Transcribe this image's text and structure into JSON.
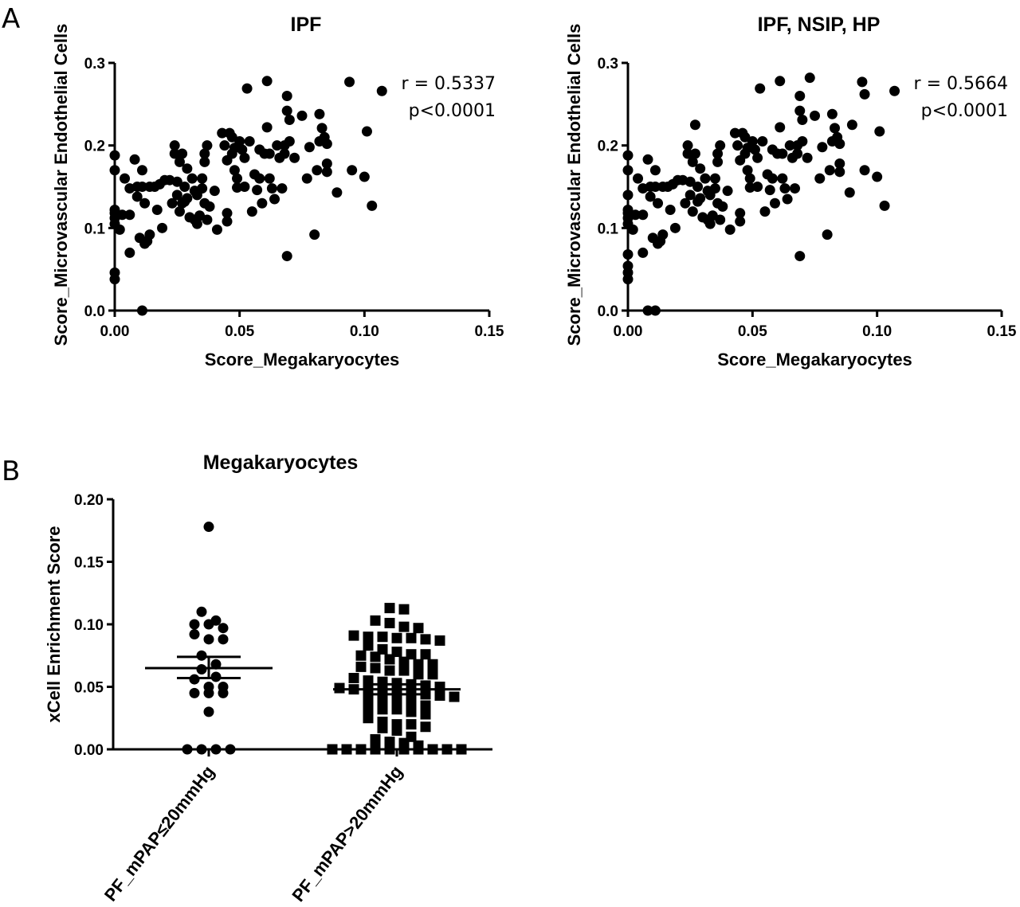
{
  "panels": {
    "a": "A",
    "b": "B"
  },
  "chart_data": [
    {
      "type": "scatter",
      "title": "IPF",
      "xlabel": "Score_Megakaryocytes",
      "ylabel": "Score_Microvascular Endothelial Cells",
      "xlim": [
        0,
        0.15
      ],
      "ylim": [
        0,
        0.3
      ],
      "xticks": [
        "0.00",
        "0.05",
        "0.10",
        "0.15"
      ],
      "yticks": [
        "0.0",
        "0.1",
        "0.2",
        "0.3"
      ],
      "annotations": [
        "r = 0.5337",
        "p<0.0001"
      ],
      "points": [
        [
          0,
          0.038
        ],
        [
          0,
          0.046
        ],
        [
          0,
          0.105
        ],
        [
          0,
          0.112
        ],
        [
          0,
          0.118
        ],
        [
          0,
          0.122
        ],
        [
          0,
          0.17
        ],
        [
          0,
          0.188
        ],
        [
          0.002,
          0.098
        ],
        [
          0.003,
          0.116
        ],
        [
          0.004,
          0.16
        ],
        [
          0.006,
          0.07
        ],
        [
          0.006,
          0.116
        ],
        [
          0.006,
          0.148
        ],
        [
          0.008,
          0.183
        ],
        [
          0.009,
          0.138
        ],
        [
          0.009,
          0.15
        ],
        [
          0.01,
          0.088
        ],
        [
          0.011,
          0.15
        ],
        [
          0.011,
          0.17
        ],
        [
          0.012,
          0.13
        ],
        [
          0.012,
          0.081
        ],
        [
          0.013,
          0.084
        ],
        [
          0.014,
          0.092
        ],
        [
          0.014,
          0.15
        ],
        [
          0.016,
          0.15
        ],
        [
          0.017,
          0.122
        ],
        [
          0.018,
          0.153
        ],
        [
          0.019,
          0.1
        ],
        [
          0.02,
          0.158
        ],
        [
          0.022,
          0.158
        ],
        [
          0.023,
          0.13
        ],
        [
          0.024,
          0.19
        ],
        [
          0.024,
          0.2
        ],
        [
          0.025,
          0.14
        ],
        [
          0.025,
          0.156
        ],
        [
          0.026,
          0.12
        ],
        [
          0.026,
          0.18
        ],
        [
          0.027,
          0.13
        ],
        [
          0.027,
          0.19
        ],
        [
          0.028,
          0.15
        ],
        [
          0.028,
          0.132
        ],
        [
          0.029,
          0.136
        ],
        [
          0.029,
          0.172
        ],
        [
          0.03,
          0.113
        ],
        [
          0.031,
          0.16
        ],
        [
          0.032,
          0.145
        ],
        [
          0.032,
          0.11
        ],
        [
          0.033,
          0.105
        ],
        [
          0.033,
          0.14
        ],
        [
          0.034,
          0.115
        ],
        [
          0.035,
          0.148
        ],
        [
          0.035,
          0.16
        ],
        [
          0.036,
          0.18
        ],
        [
          0.036,
          0.19
        ],
        [
          0.036,
          0.13
        ],
        [
          0.037,
          0.2
        ],
        [
          0.037,
          0.11
        ],
        [
          0.038,
          0.126
        ],
        [
          0.04,
          0.145
        ],
        [
          0.041,
          0.098
        ],
        [
          0.043,
          0.215
        ],
        [
          0.044,
          0.2
        ],
        [
          0.045,
          0.182
        ],
        [
          0.045,
          0.118
        ],
        [
          0.045,
          0.108
        ],
        [
          0.046,
          0.215
        ],
        [
          0.047,
          0.21
        ],
        [
          0.047,
          0.19
        ],
        [
          0.048,
          0.197
        ],
        [
          0.048,
          0.17
        ],
        [
          0.049,
          0.16
        ],
        [
          0.049,
          0.149
        ],
        [
          0.05,
          0.205
        ],
        [
          0.051,
          0.195
        ],
        [
          0.052,
          0.185
        ],
        [
          0.052,
          0.15
        ],
        [
          0.053,
          0.269
        ],
        [
          0.054,
          0.205
        ],
        [
          0.055,
          0.12
        ],
        [
          0.056,
          0.165
        ],
        [
          0.057,
          0.146
        ],
        [
          0.058,
          0.195
        ],
        [
          0.058,
          0.16
        ],
        [
          0.059,
          0.13
        ],
        [
          0.06,
          0.19
        ],
        [
          0.061,
          0.278
        ],
        [
          0.061,
          0.222
        ],
        [
          0.062,
          0.19
        ],
        [
          0.062,
          0.16
        ],
        [
          0.063,
          0.148
        ],
        [
          0.064,
          0.135
        ],
        [
          0.065,
          0.2
        ],
        [
          0.066,
          0.185
        ],
        [
          0.067,
          0.148
        ],
        [
          0.068,
          0.2
        ],
        [
          0.068,
          0.19
        ],
        [
          0.069,
          0.26
        ],
        [
          0.069,
          0.242
        ],
        [
          0.07,
          0.231
        ],
        [
          0.07,
          0.205
        ],
        [
          0.069,
          0.066
        ],
        [
          0.072,
          0.185
        ],
        [
          0.075,
          0.236
        ],
        [
          0.077,
          0.16
        ],
        [
          0.078,
          0.198
        ],
        [
          0.08,
          0.092
        ],
        [
          0.081,
          0.17
        ],
        [
          0.082,
          0.238
        ],
        [
          0.082,
          0.205
        ],
        [
          0.083,
          0.221
        ],
        [
          0.084,
          0.21
        ],
        [
          0.085,
          0.202
        ],
        [
          0.085,
          0.178
        ],
        [
          0.085,
          0.168
        ],
        [
          0.089,
          0.143
        ],
        [
          0.094,
          0.277
        ],
        [
          0.095,
          0.17
        ],
        [
          0.1,
          0.162
        ],
        [
          0.101,
          0.217
        ],
        [
          0.103,
          0.127
        ],
        [
          0.107,
          0.266
        ],
        [
          0.011,
          0.0
        ]
      ]
    },
    {
      "type": "scatter",
      "title": "IPF, NSIP, HP",
      "xlabel": "Score_Megakaryocytes",
      "ylabel": "Score_Microvascular Endothelial Cells",
      "xlim": [
        0,
        0.15
      ],
      "ylim": [
        0,
        0.3
      ],
      "xticks": [
        "0.00",
        "0.05",
        "0.10",
        "0.15"
      ],
      "yticks": [
        "0.0",
        "0.1",
        "0.2",
        "0.3"
      ],
      "annotations": [
        "r = 0.5664",
        "p<0.0001"
      ],
      "points": [
        [
          0,
          0.038
        ],
        [
          0,
          0.046
        ],
        [
          0,
          0.054
        ],
        [
          0,
          0.068
        ],
        [
          0,
          0.105
        ],
        [
          0,
          0.112
        ],
        [
          0,
          0.118
        ],
        [
          0,
          0.122
        ],
        [
          0,
          0.14
        ],
        [
          0,
          0.17
        ],
        [
          0,
          0.188
        ],
        [
          0.002,
          0.098
        ],
        [
          0.003,
          0.116
        ],
        [
          0.004,
          0.16
        ],
        [
          0.006,
          0.07
        ],
        [
          0.006,
          0.116
        ],
        [
          0.006,
          0.148
        ],
        [
          0.008,
          0.183
        ],
        [
          0.009,
          0.138
        ],
        [
          0.009,
          0.15
        ],
        [
          0.01,
          0.088
        ],
        [
          0.011,
          0.15
        ],
        [
          0.011,
          0.17
        ],
        [
          0.012,
          0.13
        ],
        [
          0.012,
          0.081
        ],
        [
          0.013,
          0.084
        ],
        [
          0.014,
          0.092
        ],
        [
          0.014,
          0.15
        ],
        [
          0.016,
          0.15
        ],
        [
          0.017,
          0.122
        ],
        [
          0.018,
          0.153
        ],
        [
          0.019,
          0.1
        ],
        [
          0.02,
          0.158
        ],
        [
          0.022,
          0.158
        ],
        [
          0.023,
          0.13
        ],
        [
          0.024,
          0.19
        ],
        [
          0.024,
          0.2
        ],
        [
          0.025,
          0.14
        ],
        [
          0.025,
          0.156
        ],
        [
          0.026,
          0.12
        ],
        [
          0.026,
          0.18
        ],
        [
          0.027,
          0.225
        ],
        [
          0.027,
          0.19
        ],
        [
          0.028,
          0.15
        ],
        [
          0.028,
          0.132
        ],
        [
          0.029,
          0.136
        ],
        [
          0.029,
          0.172
        ],
        [
          0.03,
          0.113
        ],
        [
          0.031,
          0.16
        ],
        [
          0.032,
          0.145
        ],
        [
          0.032,
          0.11
        ],
        [
          0.033,
          0.105
        ],
        [
          0.033,
          0.14
        ],
        [
          0.034,
          0.115
        ],
        [
          0.035,
          0.148
        ],
        [
          0.035,
          0.16
        ],
        [
          0.036,
          0.18
        ],
        [
          0.036,
          0.19
        ],
        [
          0.036,
          0.13
        ],
        [
          0.037,
          0.2
        ],
        [
          0.037,
          0.11
        ],
        [
          0.038,
          0.126
        ],
        [
          0.04,
          0.145
        ],
        [
          0.041,
          0.098
        ],
        [
          0.043,
          0.215
        ],
        [
          0.044,
          0.2
        ],
        [
          0.045,
          0.182
        ],
        [
          0.045,
          0.118
        ],
        [
          0.045,
          0.108
        ],
        [
          0.046,
          0.215
        ],
        [
          0.047,
          0.21
        ],
        [
          0.047,
          0.19
        ],
        [
          0.048,
          0.197
        ],
        [
          0.048,
          0.17
        ],
        [
          0.049,
          0.16
        ],
        [
          0.049,
          0.149
        ],
        [
          0.05,
          0.205
        ],
        [
          0.051,
          0.195
        ],
        [
          0.052,
          0.185
        ],
        [
          0.052,
          0.15
        ],
        [
          0.053,
          0.269
        ],
        [
          0.054,
          0.205
        ],
        [
          0.055,
          0.12
        ],
        [
          0.056,
          0.165
        ],
        [
          0.057,
          0.146
        ],
        [
          0.058,
          0.195
        ],
        [
          0.058,
          0.16
        ],
        [
          0.059,
          0.13
        ],
        [
          0.06,
          0.19
        ],
        [
          0.061,
          0.278
        ],
        [
          0.061,
          0.222
        ],
        [
          0.062,
          0.19
        ],
        [
          0.062,
          0.16
        ],
        [
          0.063,
          0.148
        ],
        [
          0.064,
          0.135
        ],
        [
          0.065,
          0.2
        ],
        [
          0.066,
          0.185
        ],
        [
          0.067,
          0.148
        ],
        [
          0.068,
          0.2
        ],
        [
          0.068,
          0.19
        ],
        [
          0.069,
          0.26
        ],
        [
          0.069,
          0.242
        ],
        [
          0.07,
          0.231
        ],
        [
          0.07,
          0.205
        ],
        [
          0.069,
          0.066
        ],
        [
          0.072,
          0.185
        ],
        [
          0.073,
          0.282
        ],
        [
          0.075,
          0.236
        ],
        [
          0.077,
          0.16
        ],
        [
          0.078,
          0.198
        ],
        [
          0.08,
          0.092
        ],
        [
          0.081,
          0.17
        ],
        [
          0.082,
          0.238
        ],
        [
          0.082,
          0.205
        ],
        [
          0.083,
          0.221
        ],
        [
          0.084,
          0.21
        ],
        [
          0.085,
          0.202
        ],
        [
          0.085,
          0.178
        ],
        [
          0.085,
          0.168
        ],
        [
          0.089,
          0.143
        ],
        [
          0.09,
          0.225
        ],
        [
          0.094,
          0.277
        ],
        [
          0.095,
          0.262
        ],
        [
          0.095,
          0.17
        ],
        [
          0.1,
          0.162
        ],
        [
          0.101,
          0.217
        ],
        [
          0.103,
          0.127
        ],
        [
          0.107,
          0.266
        ],
        [
          0.008,
          0.0
        ],
        [
          0.011,
          0.0
        ]
      ]
    },
    {
      "type": "scatter",
      "title": "Megakaryocytes",
      "xlabel": "",
      "ylabel": "xCell Enrichment Score",
      "ylim": [
        0,
        0.2
      ],
      "yticks": [
        "0.00",
        "0.05",
        "0.10",
        "0.15",
        "0.20"
      ],
      "categories": [
        "PF_mPAP≤20mmHg",
        "PF_mPAP>20mmHg"
      ],
      "groups": [
        {
          "marker": "circle",
          "mean": 0.065,
          "sem_low": 0.057,
          "sem_high": 0.074,
          "values": [
            0.178,
            0.11,
            0.103,
            0.1,
            0.1,
            0.097,
            0.092,
            0.088,
            0.088,
            0.075,
            0.068,
            0.064,
            0.058,
            0.056,
            0.05,
            0.05,
            0.045,
            0.045,
            0.045,
            0.03,
            0,
            0,
            0,
            0
          ]
        },
        {
          "marker": "square",
          "mean": 0.048,
          "sem_low": 0.044,
          "sem_high": 0.052,
          "values": [
            0.113,
            0.112,
            0.103,
            0.101,
            0.098,
            0.097,
            0.091,
            0.09,
            0.09,
            0.089,
            0.089,
            0.088,
            0.087,
            0.083,
            0.08,
            0.078,
            0.076,
            0.076,
            0.075,
            0.074,
            0.072,
            0.07,
            0.068,
            0.068,
            0.066,
            0.065,
            0.063,
            0.063,
            0.06,
            0.06,
            0.057,
            0.055,
            0.054,
            0.053,
            0.052,
            0.051,
            0.05,
            0.049,
            0.048,
            0.047,
            0.046,
            0.046,
            0.045,
            0.044,
            0.043,
            0.042,
            0.041,
            0.04,
            0.038,
            0.037,
            0.035,
            0.033,
            0.032,
            0.032,
            0.03,
            0.028,
            0.025,
            0.022,
            0.02,
            0.02,
            0.018,
            0.017,
            0.015,
            0.01,
            0.008,
            0.006,
            0.005,
            0.003,
            0,
            0,
            0,
            0,
            0,
            0,
            0,
            0,
            0,
            0
          ]
        }
      ]
    }
  ]
}
